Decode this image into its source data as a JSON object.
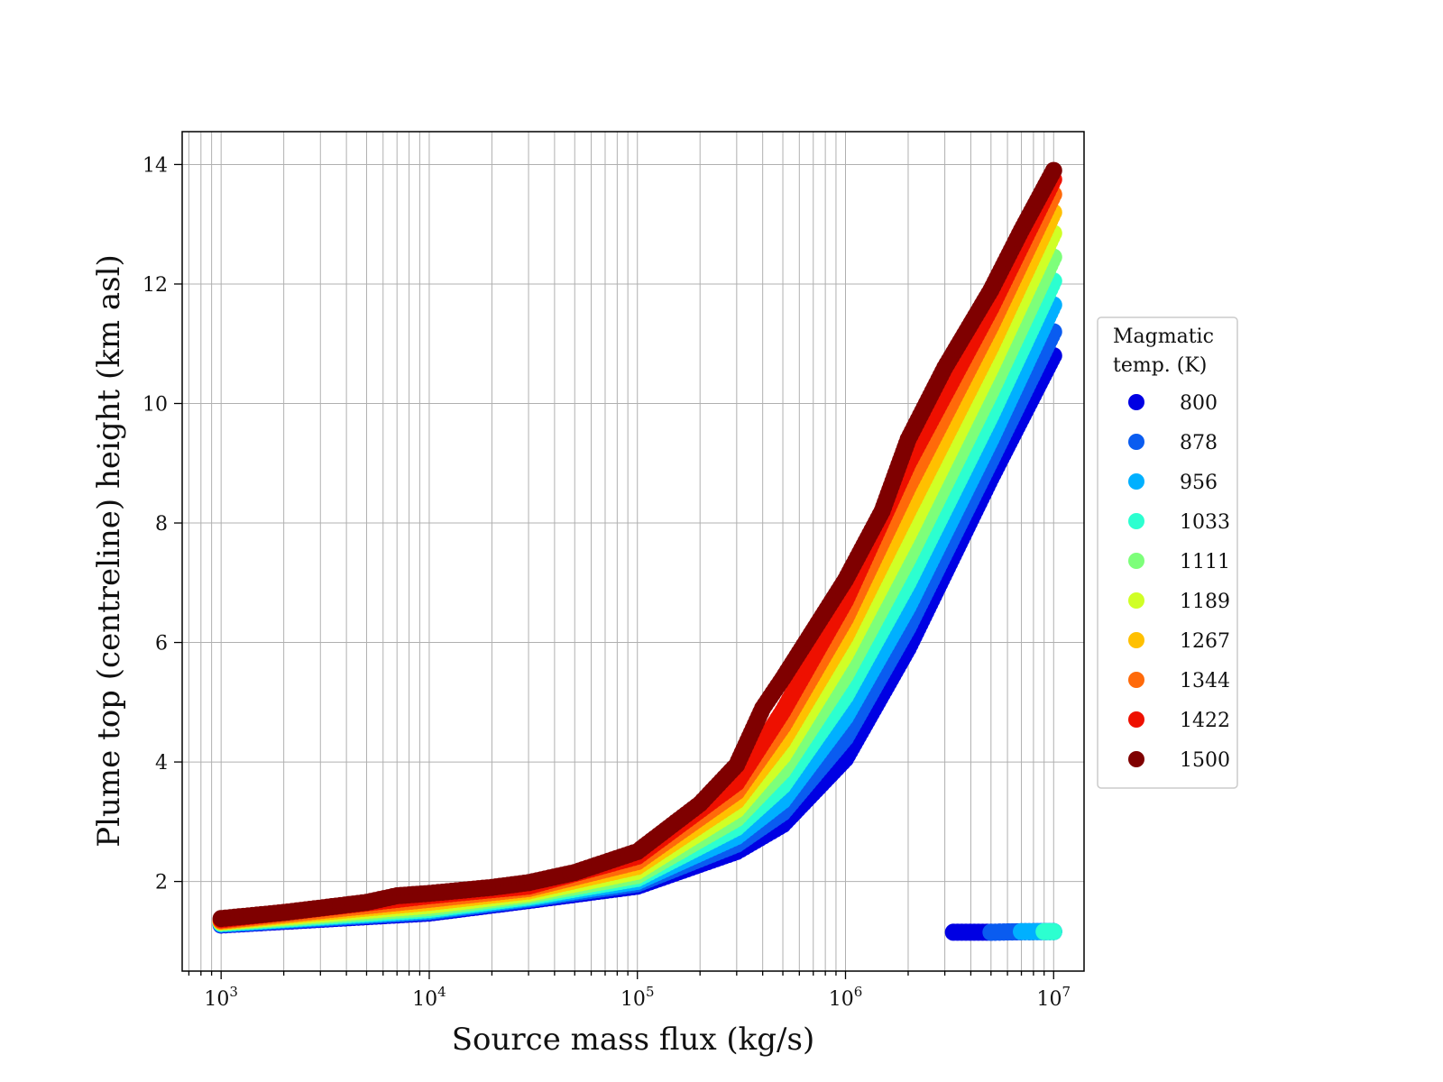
{
  "chart_data": {
    "type": "scatter",
    "title": "",
    "xlabel": "Source mass flux (kg/s)",
    "ylabel": "Plume top (centreline) height (km asl)",
    "xscale": "log",
    "xlim": [
      650,
      14000000
    ],
    "ylim": [
      0.5,
      14.55
    ],
    "x_ticks": [
      {
        "value": 1000,
        "base": "10",
        "exp": "3"
      },
      {
        "value": 10000,
        "base": "10",
        "exp": "4"
      },
      {
        "value": 100000,
        "base": "10",
        "exp": "5"
      },
      {
        "value": 1000000,
        "base": "10",
        "exp": "6"
      },
      {
        "value": 10000000,
        "base": "10",
        "exp": "7"
      }
    ],
    "y_ticks": [
      {
        "value": 2,
        "label": "2"
      },
      {
        "value": 4,
        "label": "4"
      },
      {
        "value": 6,
        "label": "6"
      },
      {
        "value": 8,
        "label": "8"
      },
      {
        "value": 10,
        "label": "10"
      },
      {
        "value": 12,
        "label": "12"
      },
      {
        "value": 14,
        "label": "14"
      }
    ],
    "grid": true,
    "legend": {
      "title_lines": [
        "Magmatic",
        "temp. (K)"
      ],
      "placement": "outside-right"
    },
    "series": [
      {
        "name": "800",
        "color": "#0000e3",
        "x": [
          1000,
          10000,
          30000,
          100000,
          300000,
          500000,
          1000000,
          2000000,
          5000000,
          10000000
        ],
        "y": [
          1.27,
          1.47,
          1.68,
          1.92,
          2.5,
          2.95,
          4.05,
          5.9,
          8.75,
          10.8
        ],
        "low_x": [
          3300000,
          5000000,
          8000000,
          10000000
        ],
        "low_y": [
          1.15,
          1.15,
          1.16,
          1.16
        ]
      },
      {
        "name": "878",
        "color": "#0a5cf0",
        "x": [
          1000,
          10000,
          30000,
          100000,
          300000,
          500000,
          1000000,
          2000000,
          5000000,
          10000000
        ],
        "y": [
          1.28,
          1.49,
          1.7,
          1.96,
          2.62,
          3.15,
          4.4,
          6.25,
          9.05,
          11.2
        ],
        "low_x": [
          5000000,
          7000000,
          9000000,
          10000000
        ],
        "low_y": [
          1.15,
          1.16,
          1.16,
          1.16
        ]
      },
      {
        "name": "956",
        "color": "#00b0ff",
        "x": [
          1000,
          10000,
          30000,
          100000,
          300000,
          500000,
          1000000,
          2000000,
          5000000,
          10000000
        ],
        "y": [
          1.29,
          1.51,
          1.72,
          2.0,
          2.75,
          3.35,
          4.75,
          6.6,
          9.4,
          11.65
        ],
        "low_x": [
          7000000,
          8500000,
          10000000
        ],
        "low_y": [
          1.16,
          1.16,
          1.16
        ]
      },
      {
        "name": "1033",
        "color": "#2cffd0",
        "x": [
          1000,
          10000,
          30000,
          100000,
          300000,
          500000,
          1000000,
          2000000,
          5000000,
          10000000
        ],
        "y": [
          1.3,
          1.53,
          1.74,
          2.05,
          2.9,
          3.6,
          5.1,
          7.0,
          9.8,
          12.05
        ],
        "low_x": [
          9000000,
          10000000
        ],
        "low_y": [
          1.16,
          1.16
        ]
      },
      {
        "name": "1111",
        "color": "#7dff7a",
        "x": [
          1000,
          10000,
          30000,
          100000,
          300000,
          500000,
          1000000,
          2000000,
          5000000,
          10000000
        ],
        "y": [
          1.31,
          1.56,
          1.77,
          2.1,
          3.05,
          3.85,
          5.45,
          7.4,
          10.2,
          12.45
        ]
      },
      {
        "name": "1189",
        "color": "#d0ff26",
        "x": [
          1000,
          10000,
          30000,
          100000,
          300000,
          500000,
          1000000,
          2000000,
          5000000,
          10000000
        ],
        "y": [
          1.32,
          1.6,
          1.8,
          2.17,
          3.2,
          4.1,
          5.8,
          7.8,
          10.6,
          12.85
        ]
      },
      {
        "name": "1267",
        "color": "#ffc000",
        "x": [
          1000,
          10000,
          30000,
          100000,
          300000,
          500000,
          1000000,
          2000000,
          5000000,
          10000000
        ],
        "y": [
          1.33,
          1.65,
          1.84,
          2.25,
          3.35,
          4.35,
          6.1,
          8.2,
          10.95,
          13.2
        ]
      },
      {
        "name": "1344",
        "color": "#ff6a0a",
        "x": [
          1000,
          10000,
          30000,
          100000,
          300000,
          500000,
          1000000,
          2000000,
          5000000,
          10000000
        ],
        "y": [
          1.34,
          1.7,
          1.88,
          2.33,
          3.5,
          4.6,
          6.4,
          8.6,
          11.3,
          13.5
        ]
      },
      {
        "name": "1422",
        "color": "#ee1000",
        "x": [
          1000,
          10000,
          30000,
          100000,
          300000,
          500000,
          1000000,
          2000000,
          5000000,
          10000000
        ],
        "y": [
          1.36,
          1.76,
          1.92,
          2.42,
          3.65,
          4.85,
          6.7,
          9.0,
          11.6,
          13.75
        ]
      },
      {
        "name": "1500",
        "color": "#7f0000",
        "x": [
          1000,
          2000,
          5000,
          7000,
          10000,
          20000,
          30000,
          50000,
          100000,
          200000,
          300000,
          400000,
          500000,
          700000,
          1000000,
          1500000,
          2000000,
          3000000,
          5000000,
          7000000,
          10000000
        ],
        "y": [
          1.38,
          1.48,
          1.65,
          1.76,
          1.8,
          1.9,
          1.98,
          2.15,
          2.5,
          3.3,
          3.95,
          4.9,
          5.4,
          6.2,
          7.05,
          8.2,
          9.4,
          10.6,
          11.9,
          12.9,
          13.9
        ]
      }
    ]
  }
}
